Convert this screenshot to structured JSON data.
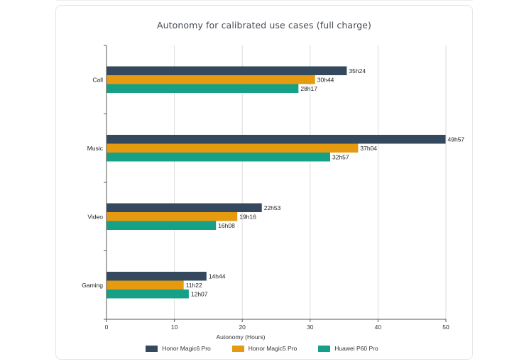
{
  "chart_data": {
    "type": "bar",
    "orientation": "horizontal",
    "title": "Autonomy for calibrated use cases (full charge)",
    "xlabel": "Autonomy (Hours)",
    "ylabel": "",
    "xlim": [
      0,
      50
    ],
    "xticks": [
      0,
      10,
      20,
      30,
      40,
      50
    ],
    "grid": "vertical",
    "legend_position": "bottom",
    "categories": [
      "Call",
      "Music",
      "Video",
      "Gaming"
    ],
    "series": [
      {
        "name": "Honor Magic6 Pro",
        "color": "#34495e",
        "values": [
          35.4,
          49.95,
          22.88,
          14.73
        ],
        "labels": [
          "35h24",
          "49h57",
          "22h53",
          "14h44"
        ]
      },
      {
        "name": "Honor Magic5 Pro",
        "color": "#e59a0f",
        "values": [
          30.73,
          37.07,
          19.27,
          11.37
        ],
        "labels": [
          "30h44",
          "37h04",
          "19h16",
          "11h22"
        ]
      },
      {
        "name": "Huawei P60 Pro",
        "color": "#16a085",
        "values": [
          28.28,
          32.95,
          16.13,
          12.12
        ],
        "labels": [
          "28h17",
          "32h57",
          "16h08",
          "12h07"
        ]
      }
    ]
  }
}
